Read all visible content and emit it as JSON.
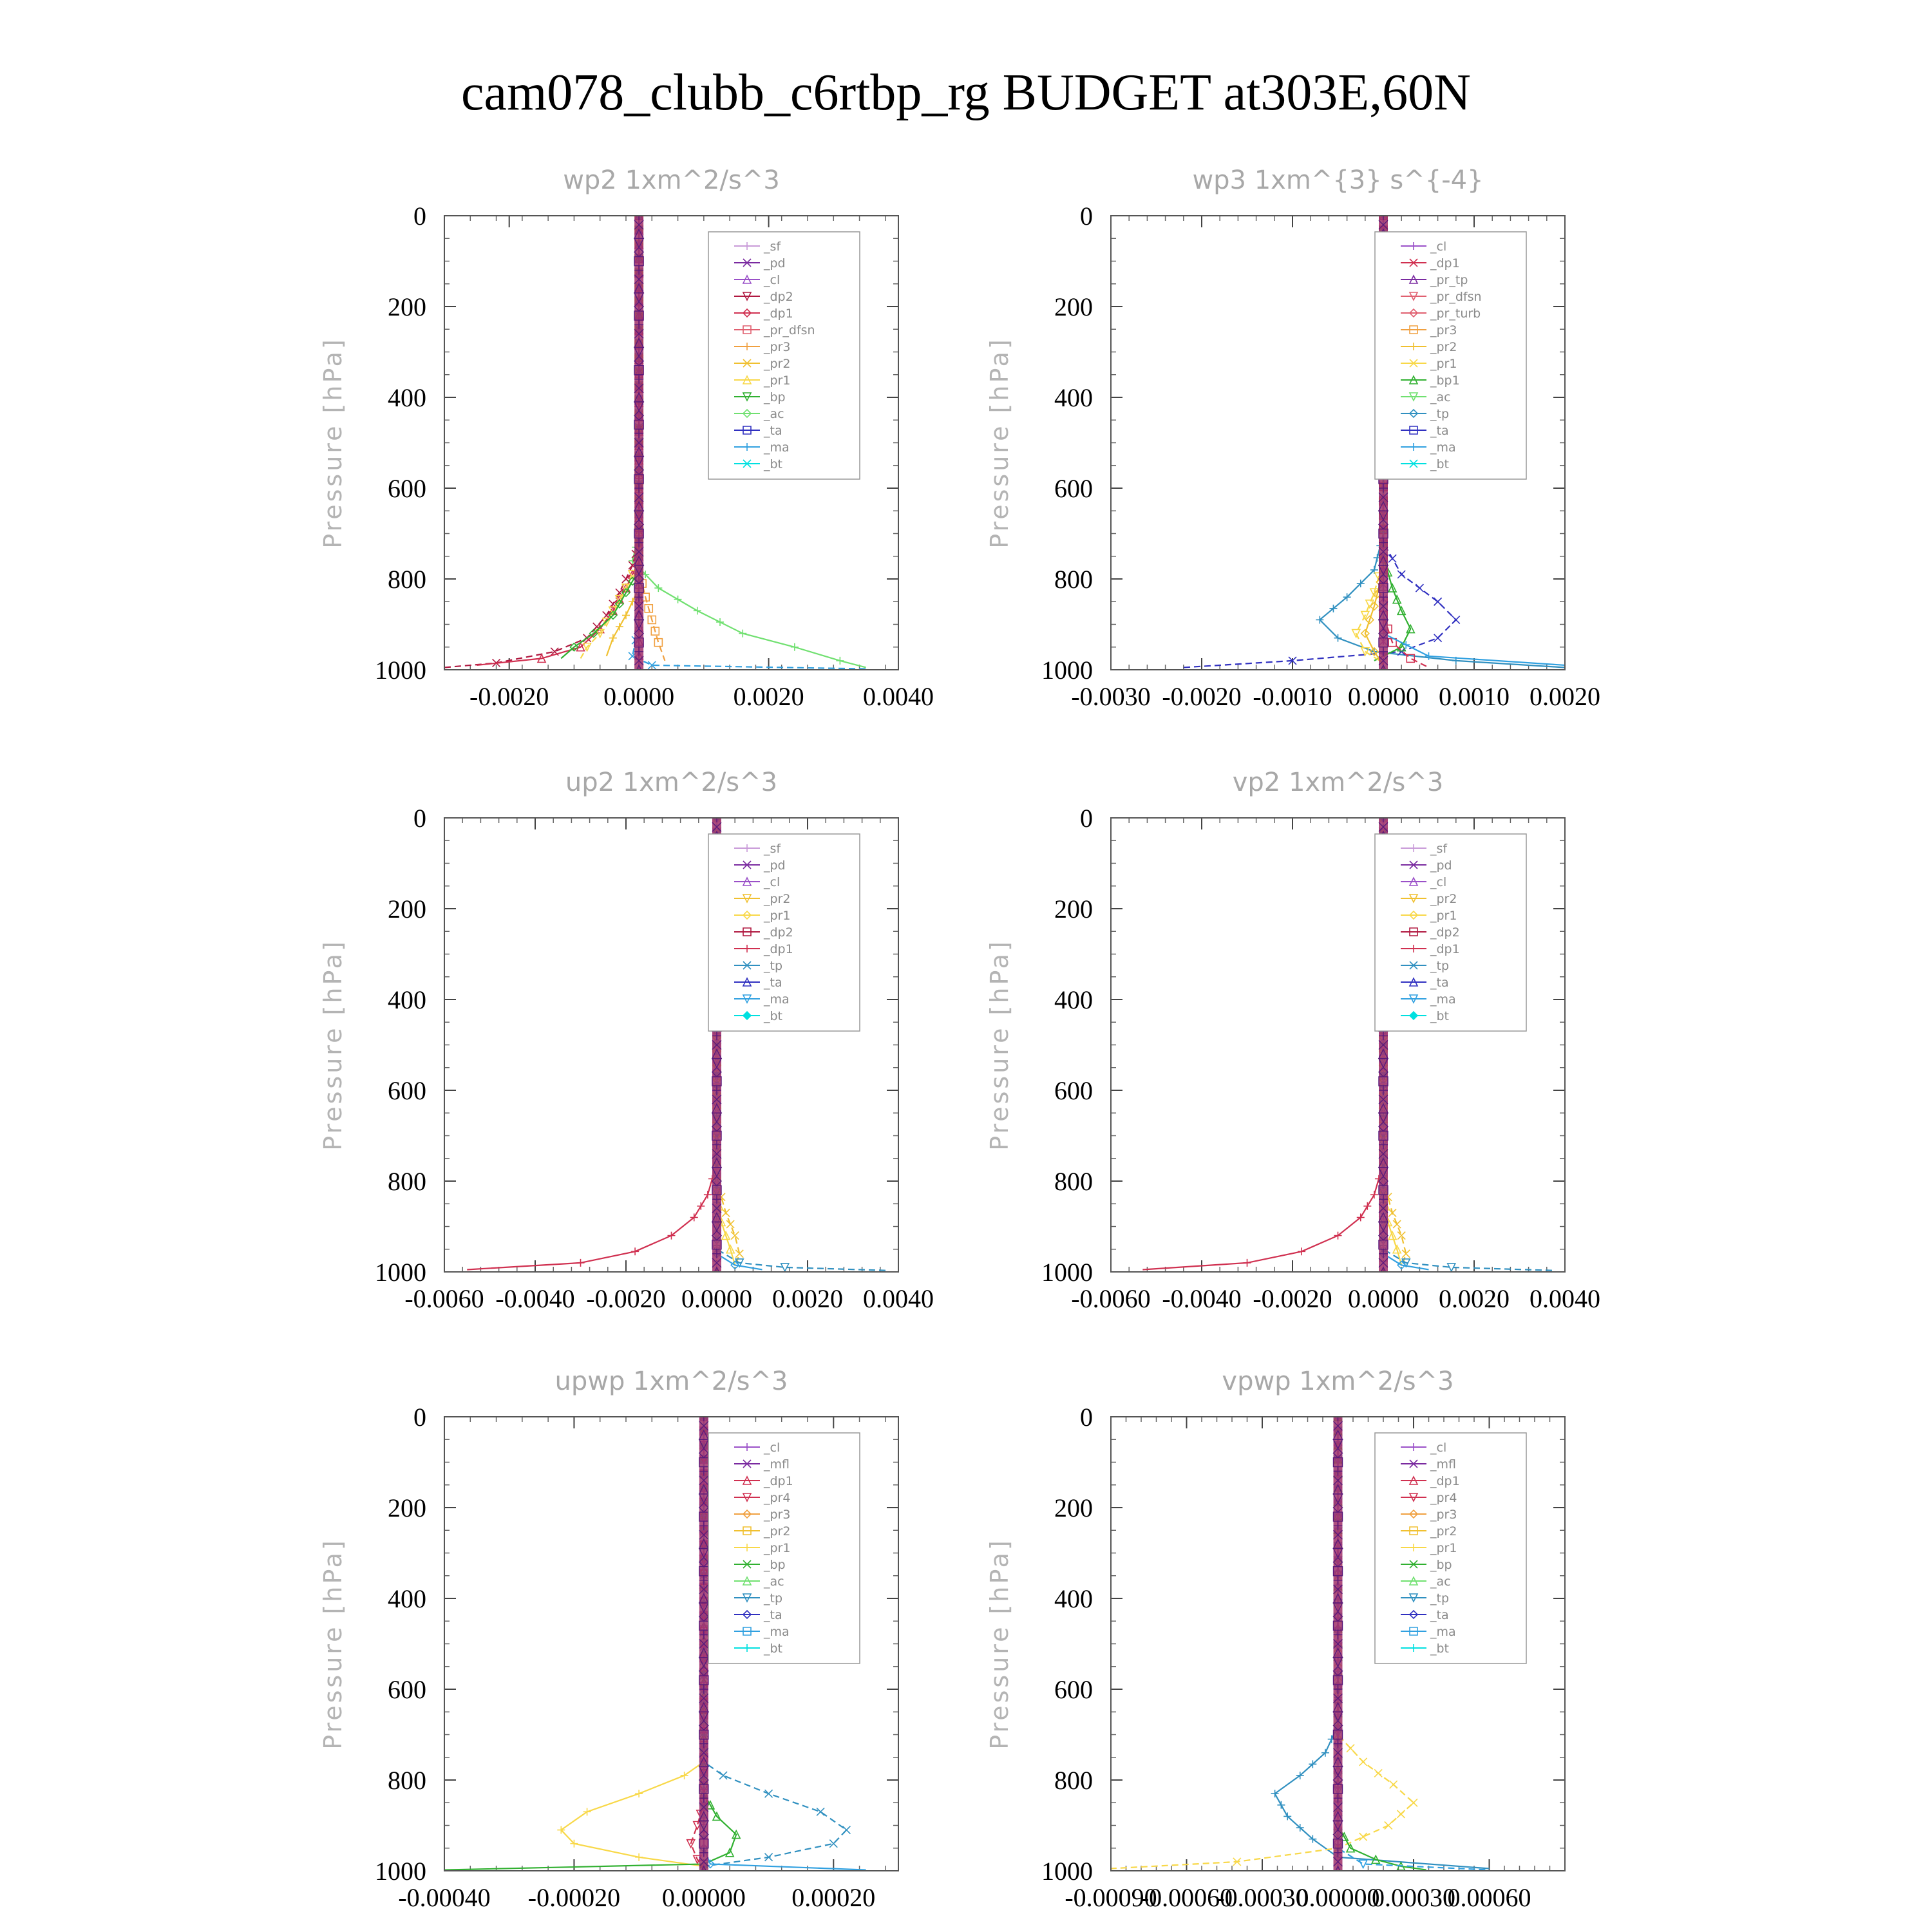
{
  "figure": {
    "title": "cam078_clubb_c6rtbp_rg  BUDGET at303E,60N"
  },
  "colors": {
    "_sf": "#c89ad8",
    "_pd": "#7a2aa0",
    "_cl": "#9a50c8",
    "_mfl": "#7a2aa0",
    "_dp2": "#b01840",
    "_dp1": "#d03050",
    "_pr_tp": "#7a2aa0",
    "_pr_dfsn": "#e06070",
    "_pr_turb": "#e06070",
    "_pr4": "#d03050",
    "_pr3": "#f0a040",
    "_pr2": "#f0c030",
    "_pr1": "#f8d848",
    "_bp": "#30b030",
    "_bp1": "#30b030",
    "_ac": "#70e070",
    "_tp": "#3090c0",
    "_ta": "#3030c0",
    "_ma": "#30a0e0",
    "_bt": "#00e0e0"
  },
  "chart_data": [
    {
      "type": "line",
      "title": "wp2   1xm^2/s^3",
      "ylabel": "Pressure [hPa]",
      "ylim": [
        1000,
        0
      ],
      "xlim": [
        -0.003,
        0.004
      ],
      "xticks": [
        -0.002,
        0.0,
        0.002,
        0.004
      ],
      "xtick_labels": [
        "-0.0020",
        "0.0000",
        "0.0020",
        "0.0040"
      ],
      "yticks": [
        0,
        200,
        400,
        600,
        800,
        1000
      ],
      "ytick_labels": [
        "0",
        "200",
        "400",
        "600",
        "800",
        "1000"
      ],
      "legend_position": "top-right",
      "legend": [
        "_sf",
        "_pd",
        "_cl",
        "_dp2",
        "_dp1",
        "_pr_dfsn",
        "_pr3",
        "_pr2",
        "_pr1",
        "_bp",
        "_ac",
        "_ta",
        "_ma",
        "_bt"
      ],
      "series": [
        {
          "name": "_ac",
          "x": [
            0,
            0,
            -0.0001,
            0.0003,
            0.0009,
            0.0016,
            0.0024,
            0.0031,
            0.0035
          ],
          "y": [
            0,
            700,
            760,
            820,
            870,
            920,
            950,
            980,
            995
          ]
        },
        {
          "name": "_dp2",
          "x": [
            0,
            0,
            -0.0001,
            -0.0003,
            -0.0005,
            -0.0008,
            -0.0013,
            -0.0022,
            -0.003
          ],
          "y": [
            0,
            720,
            770,
            830,
            880,
            930,
            960,
            985,
            995
          ]
        },
        {
          "name": "_dp1",
          "x": [
            0,
            0,
            -0.0002,
            -0.0004,
            -0.0006,
            -0.0009,
            -0.0015,
            -0.0025
          ],
          "y": [
            0,
            760,
            820,
            870,
            910,
            950,
            975,
            990
          ]
        },
        {
          "name": "_pr1",
          "x": [
            0,
            0,
            -0.0002,
            -0.0004,
            -0.0006,
            -0.0008,
            -0.0009
          ],
          "y": [
            0,
            760,
            820,
            870,
            920,
            950,
            975
          ]
        },
        {
          "name": "_bp",
          "x": [
            0,
            0,
            -0.0002,
            -0.0004,
            -0.0007,
            -0.001,
            -0.0012
          ],
          "y": [
            0,
            780,
            830,
            880,
            920,
            950,
            975
          ]
        },
        {
          "name": "_pr3",
          "x": [
            0,
            0,
            0.0001,
            0.0002,
            0.0003,
            0.0004
          ],
          "y": [
            0,
            780,
            840,
            890,
            940,
            980
          ]
        },
        {
          "name": "_pr2",
          "x": [
            0,
            0,
            -0.0002,
            -0.0004,
            -0.0005
          ],
          "y": [
            0,
            820,
            880,
            930,
            970
          ]
        },
        {
          "name": "_ma",
          "x": [
            0,
            0,
            -0.0001,
            0.0002,
            0.0035
          ],
          "y": [
            0,
            900,
            970,
            990,
            998
          ]
        },
        {
          "name": "_pd",
          "x": [
            0,
            0
          ],
          "y": [
            0,
            1000
          ]
        }
      ]
    },
    {
      "type": "line",
      "title": "wp3   1xm^{3} s^{-4}",
      "ylabel": "Pressure [hPa]",
      "ylim": [
        1000,
        0
      ],
      "xlim": [
        -0.003,
        0.002
      ],
      "xticks": [
        -0.003,
        -0.002,
        -0.001,
        0.0,
        0.001,
        0.002
      ],
      "xtick_labels": [
        "-0.0030",
        "-0.0020",
        "-0.0010",
        "0.0000",
        "0.0010",
        "0.0020"
      ],
      "yticks": [
        0,
        200,
        400,
        600,
        800,
        1000
      ],
      "ytick_labels": [
        "0",
        "200",
        "400",
        "600",
        "800",
        "1000"
      ],
      "legend_position": "top-right",
      "legend": [
        "_cl",
        "_dp1",
        "_pr_tp",
        "_pr_dfsn",
        "_pr_turb",
        "_pr3",
        "_pr2",
        "_pr1",
        "_bp1",
        "_ac",
        "_tp",
        "_ta",
        "_ma",
        "_bt"
      ],
      "series": [
        {
          "name": "_tp",
          "x": [
            0,
            0,
            -0.0001,
            -0.0004,
            -0.0007,
            -0.0005,
            -0.0001,
            0.0008,
            0.002
          ],
          "y": [
            0,
            700,
            780,
            840,
            890,
            930,
            960,
            980,
            995
          ]
        },
        {
          "name": "_ta",
          "x": [
            0,
            0,
            0.0002,
            0.0006,
            0.0008,
            0.0006,
            0.0002,
            -0.001,
            -0.0022
          ],
          "y": [
            0,
            720,
            790,
            850,
            890,
            930,
            960,
            980,
            995
          ]
        },
        {
          "name": "_bp1",
          "x": [
            0,
            0,
            0.0001,
            0.0002,
            0.0003,
            0.0002,
            -0.0001
          ],
          "y": [
            0,
            750,
            820,
            870,
            910,
            950,
            980
          ]
        },
        {
          "name": "_pr1",
          "x": [
            0,
            0,
            -0.0001,
            -0.0002,
            -0.0003,
            -0.0002,
            0.0
          ],
          "y": [
            0,
            760,
            830,
            880,
            920,
            960,
            985
          ]
        },
        {
          "name": "_pr2",
          "x": [
            0,
            0,
            -0.0001,
            -0.0002,
            -0.0001,
            0.0
          ],
          "y": [
            0,
            780,
            860,
            920,
            960,
            990
          ]
        },
        {
          "name": "_dp1",
          "x": [
            0,
            0,
            0.0001,
            0.0003,
            0.0005
          ],
          "y": [
            0,
            880,
            940,
            975,
            995
          ]
        },
        {
          "name": "_ma",
          "x": [
            0,
            0,
            0.0005,
            0.002
          ],
          "y": [
            0,
            920,
            970,
            990
          ]
        },
        {
          "name": "_cl",
          "x": [
            0,
            0
          ],
          "y": [
            0,
            1000
          ]
        }
      ]
    },
    {
      "type": "line",
      "title": "up2   1xm^2/s^3",
      "ylabel": "Pressure [hPa]",
      "ylim": [
        1000,
        0
      ],
      "xlim": [
        -0.006,
        0.004
      ],
      "xticks": [
        -0.006,
        -0.004,
        -0.002,
        0.0,
        0.002,
        0.004
      ],
      "xtick_labels": [
        "-0.0060",
        "-0.0040",
        "-0.0020",
        "0.0000",
        "0.0020",
        "0.0040"
      ],
      "yticks": [
        0,
        200,
        400,
        600,
        800,
        1000
      ],
      "ytick_labels": [
        "0",
        "200",
        "400",
        "600",
        "800",
        "1000"
      ],
      "legend_position": "top-right",
      "legend": [
        "_sf",
        "_pd",
        "_cl",
        "_pr2",
        "_pr1",
        "_dp2",
        "_dp1",
        "_tp",
        "_ta",
        "_ma",
        "_bt"
      ],
      "series": [
        {
          "name": "_dp1",
          "x": [
            0,
            0,
            -0.0002,
            -0.0005,
            -0.001,
            -0.0018,
            -0.003,
            -0.0055
          ],
          "y": [
            0,
            760,
            830,
            880,
            920,
            955,
            980,
            995
          ]
        },
        {
          "name": "_pr2",
          "x": [
            0,
            0,
            0.0002,
            0.0004,
            0.0005,
            0.0004
          ],
          "y": [
            0,
            800,
            870,
            920,
            960,
            990
          ]
        },
        {
          "name": "_pr1",
          "x": [
            0,
            0,
            0.0001,
            0.0003,
            0.0004
          ],
          "y": [
            0,
            820,
            890,
            950,
            985
          ]
        },
        {
          "name": "_tp",
          "x": [
            0,
            0,
            0.0005,
            0.0015,
            0.0038
          ],
          "y": [
            0,
            950,
            980,
            990,
            997
          ]
        },
        {
          "name": "_ma",
          "x": [
            0,
            0,
            0.0004,
            0.001
          ],
          "y": [
            0,
            960,
            985,
            995
          ]
        },
        {
          "name": "_sf",
          "x": [
            0,
            0
          ],
          "y": [
            0,
            1000
          ]
        }
      ]
    },
    {
      "type": "line",
      "title": "vp2   1xm^2/s^3",
      "ylabel": "Pressure [hPa]",
      "ylim": [
        1000,
        0
      ],
      "xlim": [
        -0.006,
        0.004
      ],
      "xticks": [
        -0.006,
        -0.004,
        -0.002,
        0.0,
        0.002,
        0.004
      ],
      "xtick_labels": [
        "-0.0060",
        "-0.0040",
        "-0.0020",
        "0.0000",
        "0.0020",
        "0.0040"
      ],
      "yticks": [
        0,
        200,
        400,
        600,
        800,
        1000
      ],
      "ytick_labels": [
        "0",
        "200",
        "400",
        "600",
        "800",
        "1000"
      ],
      "legend_position": "top-right",
      "legend": [
        "_sf",
        "_pd",
        "_cl",
        "_pr2",
        "_pr1",
        "_dp2",
        "_dp1",
        "_tp",
        "_ta",
        "_ma",
        "_bt"
      ],
      "series": [
        {
          "name": "_dp1",
          "x": [
            0,
            0,
            -0.0002,
            -0.0005,
            -0.001,
            -0.0018,
            -0.003,
            -0.0053
          ],
          "y": [
            0,
            760,
            830,
            880,
            920,
            955,
            980,
            995
          ]
        },
        {
          "name": "_pr2",
          "x": [
            0,
            0,
            0.0002,
            0.0004,
            0.0005,
            0.0004
          ],
          "y": [
            0,
            800,
            870,
            920,
            960,
            990
          ]
        },
        {
          "name": "_pr1",
          "x": [
            0,
            0,
            0.0001,
            0.0003,
            0.0004
          ],
          "y": [
            0,
            820,
            890,
            950,
            985
          ]
        },
        {
          "name": "_tp",
          "x": [
            0,
            0,
            0.0005,
            0.0015,
            0.0038
          ],
          "y": [
            0,
            950,
            980,
            990,
            997
          ]
        },
        {
          "name": "_ma",
          "x": [
            0,
            0,
            0.0004,
            0.001
          ],
          "y": [
            0,
            960,
            985,
            995
          ]
        },
        {
          "name": "_sf",
          "x": [
            0,
            0
          ],
          "y": [
            0,
            1000
          ]
        }
      ]
    },
    {
      "type": "line",
      "title": "upwp   1xm^2/s^3",
      "ylabel": "Pressure [hPa]",
      "ylim": [
        1000,
        0
      ],
      "xlim": [
        -0.0004,
        0.0003
      ],
      "xticks": [
        -0.0004,
        -0.0002,
        0.0,
        0.0002
      ],
      "xtick_labels": [
        "-0.00040",
        "-0.00020",
        "0.00000",
        "0.00020"
      ],
      "yticks": [
        0,
        200,
        400,
        600,
        800,
        1000
      ],
      "ytick_labels": [
        "0",
        "200",
        "400",
        "600",
        "800",
        "1000"
      ],
      "legend_position": "top-right",
      "legend": [
        "_cl",
        "_mfl",
        "_dp1",
        "_pr4",
        "_pr3",
        "_pr2",
        "_pr1",
        "_bp",
        "_ac",
        "_tp",
        "_ta",
        "_ma",
        "_bt"
      ],
      "series": [
        {
          "name": "_pr1",
          "x": [
            0,
            0,
            -3e-05,
            -0.0001,
            -0.00018,
            -0.00022,
            -0.0002,
            -0.0001,
            0.0
          ],
          "y": [
            0,
            760,
            790,
            830,
            870,
            910,
            940,
            970,
            990
          ]
        },
        {
          "name": "_tp",
          "x": [
            0,
            0,
            3e-05,
            0.0001,
            0.00018,
            0.00022,
            0.0002,
            0.0001,
            0.0
          ],
          "y": [
            0,
            760,
            790,
            830,
            870,
            910,
            940,
            970,
            990
          ]
        },
        {
          "name": "_bp",
          "x": [
            0,
            0,
            2e-05,
            5e-05,
            4e-05,
            0.0,
            -0.0004
          ],
          "y": [
            0,
            830,
            880,
            920,
            960,
            985,
            998
          ]
        },
        {
          "name": "_dp1",
          "x": [
            0,
            0,
            -1e-05,
            -2e-05,
            -1e-05,
            0.0
          ],
          "y": [
            0,
            850,
            900,
            940,
            975,
            995
          ]
        },
        {
          "name": "_ma",
          "x": [
            0,
            0,
            1e-05,
            0.00025
          ],
          "y": [
            0,
            950,
            985,
            998
          ]
        },
        {
          "name": "_cl",
          "x": [
            0,
            0
          ],
          "y": [
            0,
            1000
          ]
        }
      ]
    },
    {
      "type": "line",
      "title": "vpwp   1xm^2/s^3",
      "ylabel": "Pressure [hPa]",
      "ylim": [
        1000,
        0
      ],
      "xlim": [
        -0.0009,
        0.0009
      ],
      "xticks": [
        -0.0009,
        -0.0006,
        -0.0003,
        0.0,
        0.0003,
        0.0006
      ],
      "xtick_labels": [
        "-0.00090",
        "-0.00060",
        "-0.00030",
        "0.00000",
        "0.00030",
        "0.00060"
      ],
      "yticks": [
        0,
        200,
        400,
        600,
        800,
        1000
      ],
      "ytick_labels": [
        "0",
        "200",
        "400",
        "600",
        "800",
        "1000"
      ],
      "legend_position": "top-right",
      "legend": [
        "_cl",
        "_mfl",
        "_dp1",
        "_pr4",
        "_pr3",
        "_pr2",
        "_pr1",
        "_bp",
        "_ac",
        "_tp",
        "_ta",
        "_ma",
        "_bt"
      ],
      "series": [
        {
          "name": "_tp",
          "x": [
            0,
            0,
            -5e-05,
            -0.00015,
            -0.00025,
            -0.0002,
            -0.0001,
            0.0,
            0.0006
          ],
          "y": [
            0,
            680,
            740,
            790,
            830,
            880,
            930,
            970,
            995
          ]
        },
        {
          "name": "_pr1",
          "x": [
            0,
            0,
            0.0001,
            0.00022,
            0.0003,
            0.0002,
            0.0,
            -0.0004,
            -0.0009
          ],
          "y": [
            0,
            700,
            760,
            810,
            850,
            900,
            950,
            980,
            995
          ]
        },
        {
          "name": "_bp",
          "x": [
            0,
            0,
            5e-05,
            0.00015,
            0.00025,
            0.00035
          ],
          "y": [
            0,
            900,
            950,
            975,
            990,
            998
          ]
        },
        {
          "name": "_ma",
          "x": [
            0,
            0,
            0.0001,
            0.0006
          ],
          "y": [
            0,
            950,
            985,
            998
          ]
        },
        {
          "name": "_cl",
          "x": [
            0,
            0
          ],
          "y": [
            0,
            1000
          ]
        }
      ]
    }
  ]
}
